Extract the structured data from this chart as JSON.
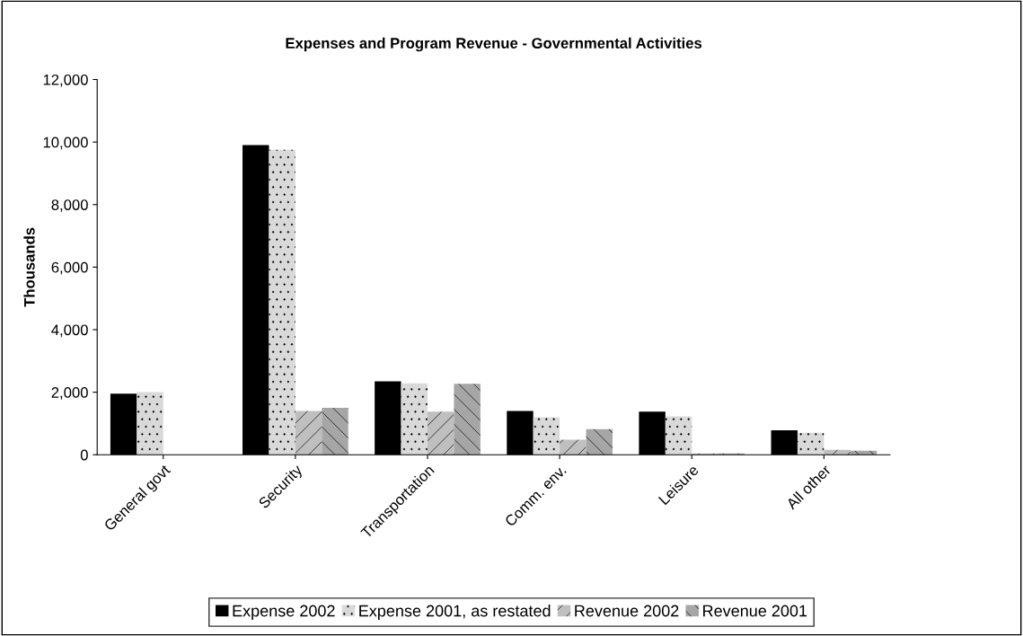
{
  "chart_data": {
    "type": "bar",
    "title": "Expenses and Program Revenue - Governmental Activities",
    "ylabel": "Thousands",
    "categories": [
      "General govt",
      "Security",
      "Transportation",
      "Comm. env.",
      "Leisure",
      "All other"
    ],
    "series": [
      {
        "name": "Expense 2002",
        "color": "#000000",
        "values": [
          1950,
          9900,
          2350,
          1400,
          1380,
          780
        ]
      },
      {
        "name": "Expense 2001, as restated",
        "color": "#d9d9d9",
        "values": [
          2000,
          9750,
          2280,
          1200,
          1230,
          700
        ]
      },
      {
        "name": "Revenue 2002",
        "color": "#bfbfbf",
        "values": [
          null,
          1400,
          1380,
          480,
          40,
          160
        ]
      },
      {
        "name": "Revenue 2001",
        "color": "#a6a6a6",
        "values": [
          null,
          1500,
          2270,
          820,
          40,
          130
        ]
      }
    ],
    "ylim": [
      0,
      12000
    ],
    "yticks": [
      {
        "value": 0,
        "label": "0"
      },
      {
        "value": 2000,
        "label": "2,000"
      },
      {
        "value": 4000,
        "label": "4,000"
      },
      {
        "value": 6000,
        "label": "6,000"
      },
      {
        "value": 8000,
        "label": "8,000"
      },
      {
        "value": 10000,
        "label": "10,000"
      },
      {
        "value": 12000,
        "label": "12,000"
      }
    ],
    "grid": false,
    "legend": "bottom"
  }
}
